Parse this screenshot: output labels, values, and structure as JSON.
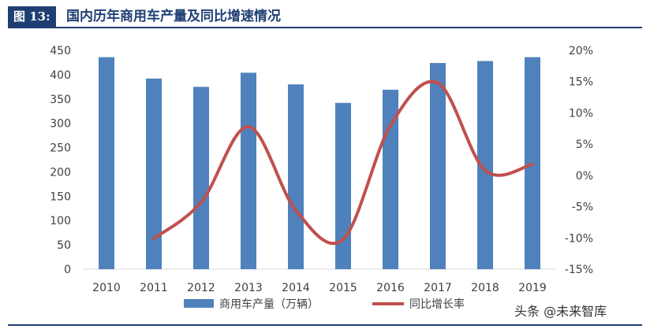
{
  "header": {
    "figure_label": "图 13:",
    "title": "国内历年商用车产量及同比增速情况"
  },
  "watermark": "头条 @未来智库",
  "colors": {
    "bar": "#4f81bd",
    "line": "#c0504d",
    "accent": "#1f3f73",
    "axis_text": "#404040"
  },
  "chart_data": {
    "type": "bar",
    "title": "国内历年商用车产量及同比增速情况",
    "categories": [
      "2010",
      "2011",
      "2012",
      "2013",
      "2014",
      "2015",
      "2016",
      "2017",
      "2018",
      "2019"
    ],
    "series": [
      {
        "name": "商用车产量（万辆）",
        "type": "bar",
        "axis": "left",
        "values": [
          436,
          392,
          375,
          404,
          380,
          342,
          369,
          424,
          428,
          436
        ]
      },
      {
        "name": "同比增长率",
        "type": "line",
        "axis": "right",
        "smooth": true,
        "values": [
          null,
          -10.1,
          -4.3,
          7.8,
          -5.6,
          -10.2,
          8.0,
          14.8,
          0.8,
          1.8
        ]
      }
    ],
    "y_left": {
      "min": 0,
      "max": 450,
      "step": 50,
      "ticks": [
        "0",
        "50",
        "100",
        "150",
        "200",
        "250",
        "300",
        "350",
        "400",
        "450"
      ]
    },
    "y_right": {
      "min": -15,
      "max": 20,
      "step": 5,
      "ticks": [
        "-15%",
        "-10%",
        "-5%",
        "0%",
        "5%",
        "10%",
        "15%",
        "20%"
      ]
    },
    "grid": false,
    "legend": "bottom"
  }
}
